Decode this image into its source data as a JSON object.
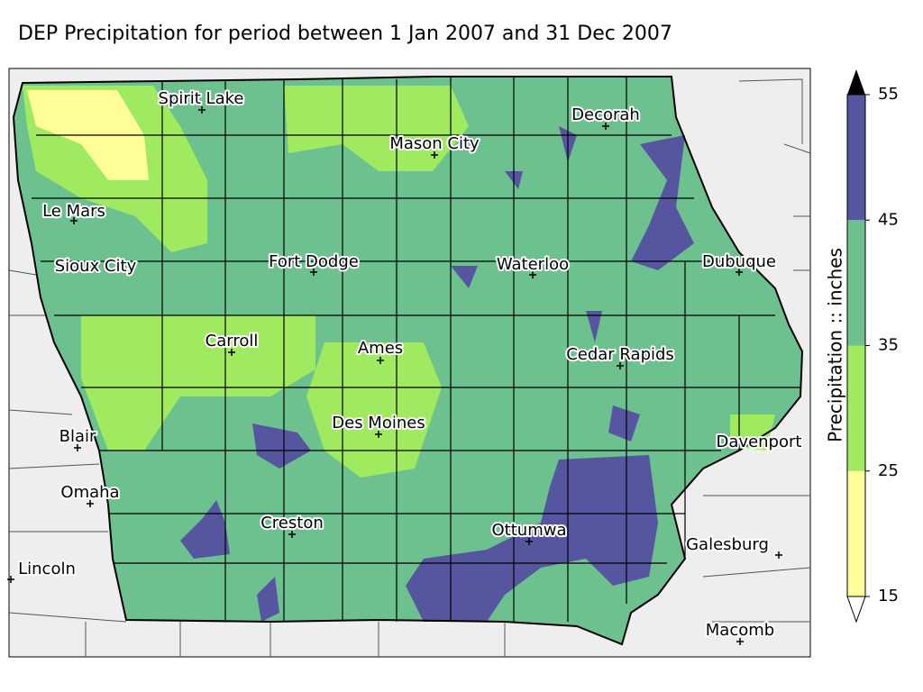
{
  "title": "DEP Precipitation for period between 1 Jan 2007 and 31 Dec 2007",
  "cities": [
    "Spirit Lake",
    "Decorah",
    "Mason City",
    "Le Mars",
    "Sioux City",
    "Fort Dodge",
    "Waterloo",
    "Dubuque",
    "Carroll",
    "Ames",
    "Cedar Rapids",
    "Des Moines",
    "Blair",
    "Davenport",
    "Omaha",
    "Creston",
    "Ottumwa",
    "Galesburg",
    "Lincoln",
    "Macomb"
  ],
  "colorbar": {
    "label": "Precipitation :: inches",
    "ticks": [
      15,
      25,
      35,
      45,
      55
    ],
    "colors": [
      "#ffff99",
      "#a0ea60",
      "#6cc18e",
      "#5555a0"
    ],
    "extend_color": "#000000"
  }
}
